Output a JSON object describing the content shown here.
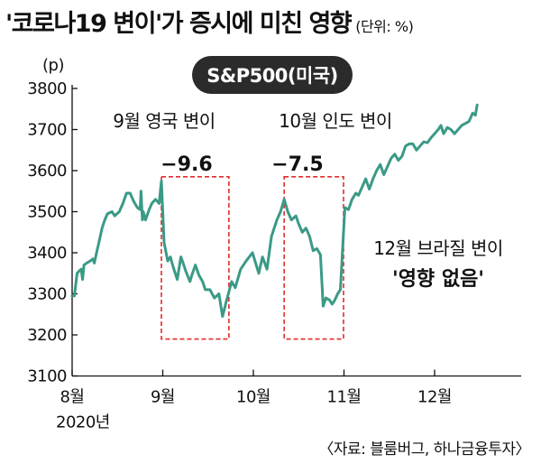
{
  "title": {
    "main": "'코로나19 변이'가 증시에 미친 영향",
    "unit": "(단위: %)"
  },
  "badge": "S&P500(미국)",
  "source": "〈자료: 블룸버그, 하나금융투자〉",
  "colors": {
    "line": "#3a9a86",
    "highlight_box": "#e02d2d",
    "badge_bg": "#2b2b2b"
  },
  "chart_data": {
    "type": "line",
    "title": "S&P500(미국)",
    "ylabel": "(p)",
    "xlabel": "",
    "ylim": [
      3100,
      3800
    ],
    "yticks": [
      3100,
      3200,
      3300,
      3400,
      3500,
      3600,
      3700,
      3800
    ],
    "xticks": [
      {
        "label": "8월",
        "x": 0
      },
      {
        "label": "9월",
        "x": 1
      },
      {
        "label": "10월",
        "x": 2
      },
      {
        "label": "11월",
        "x": 3
      },
      {
        "label": "12월",
        "x": 4
      }
    ],
    "year_label": "2020년",
    "grid": false,
    "series": [
      {
        "name": "",
        "points": [
          [
            0.0,
            3295
          ],
          [
            0.025,
            3295
          ],
          [
            0.055,
            3350
          ],
          [
            0.075,
            3355
          ],
          [
            0.1,
            3360
          ],
          [
            0.115,
            3335
          ],
          [
            0.13,
            3370
          ],
          [
            0.16,
            3375
          ],
          [
            0.2,
            3380
          ],
          [
            0.23,
            3385
          ],
          [
            0.245,
            3375
          ],
          [
            0.27,
            3400
          ],
          [
            0.3,
            3430
          ],
          [
            0.33,
            3460
          ],
          [
            0.36,
            3480
          ],
          [
            0.39,
            3495
          ],
          [
            0.44,
            3500
          ],
          [
            0.47,
            3490
          ],
          [
            0.52,
            3500
          ],
          [
            0.56,
            3520
          ],
          [
            0.6,
            3545
          ],
          [
            0.64,
            3545
          ],
          [
            0.68,
            3525
          ],
          [
            0.72,
            3510
          ],
          [
            0.75,
            3505
          ],
          [
            0.76,
            3550
          ],
          [
            0.775,
            3480
          ],
          [
            0.785,
            3500
          ],
          [
            0.81,
            3480
          ],
          [
            0.85,
            3505
          ],
          [
            0.88,
            3520
          ],
          [
            0.92,
            3530
          ],
          [
            0.96,
            3520
          ],
          [
            0.985,
            3575
          ],
          [
            1.0,
            3500
          ],
          [
            1.015,
            3425
          ],
          [
            1.055,
            3380
          ],
          [
            1.085,
            3390
          ],
          [
            1.115,
            3365
          ],
          [
            1.16,
            3335
          ],
          [
            1.2,
            3390
          ],
          [
            1.225,
            3375
          ],
          [
            1.255,
            3355
          ],
          [
            1.3,
            3330
          ],
          [
            1.32,
            3345
          ],
          [
            1.36,
            3370
          ],
          [
            1.4,
            3345
          ],
          [
            1.44,
            3330
          ],
          [
            1.47,
            3310
          ],
          [
            1.52,
            3310
          ],
          [
            1.57,
            3290
          ],
          [
            1.62,
            3300
          ],
          [
            1.66,
            3245
          ],
          [
            1.7,
            3280
          ],
          [
            1.76,
            3330
          ],
          [
            1.8,
            3315
          ],
          [
            1.86,
            3360
          ],
          [
            1.92,
            3380
          ],
          [
            1.99,
            3400
          ],
          [
            2.06,
            3350
          ],
          [
            2.1,
            3390
          ],
          [
            2.15,
            3360
          ],
          [
            2.2,
            3440
          ],
          [
            2.26,
            3480
          ],
          [
            2.3,
            3500
          ],
          [
            2.34,
            3530
          ],
          [
            2.38,
            3500
          ],
          [
            2.42,
            3480
          ],
          [
            2.47,
            3490
          ],
          [
            2.5,
            3470
          ],
          [
            2.54,
            3450
          ],
          [
            2.58,
            3460
          ],
          [
            2.62,
            3440
          ],
          [
            2.66,
            3405
          ],
          [
            2.7,
            3410
          ],
          [
            2.74,
            3395
          ],
          [
            2.77,
            3270
          ],
          [
            2.8,
            3290
          ],
          [
            2.84,
            3285
          ],
          [
            2.87,
            3275
          ],
          [
            2.9,
            3285
          ],
          [
            2.93,
            3300
          ],
          [
            2.96,
            3310
          ],
          [
            2.98,
            3390
          ],
          [
            3.01,
            3510
          ],
          [
            3.05,
            3505
          ],
          [
            3.09,
            3530
          ],
          [
            3.13,
            3545
          ],
          [
            3.16,
            3540
          ],
          [
            3.2,
            3560
          ],
          [
            3.24,
            3580
          ],
          [
            3.28,
            3555
          ],
          [
            3.32,
            3580
          ],
          [
            3.36,
            3600
          ],
          [
            3.4,
            3615
          ],
          [
            3.44,
            3590
          ],
          [
            3.48,
            3610
          ],
          [
            3.52,
            3630
          ],
          [
            3.56,
            3640
          ],
          [
            3.6,
            3625
          ],
          [
            3.64,
            3635
          ],
          [
            3.68,
            3660
          ],
          [
            3.72,
            3665
          ],
          [
            3.76,
            3665
          ],
          [
            3.8,
            3650
          ],
          [
            3.84,
            3660
          ],
          [
            3.88,
            3670
          ],
          [
            3.92,
            3668
          ],
          [
            3.96,
            3680
          ],
          [
            4.0,
            3690
          ],
          [
            4.04,
            3700
          ],
          [
            4.07,
            3710
          ],
          [
            4.1,
            3690
          ],
          [
            4.14,
            3705
          ],
          [
            4.18,
            3700
          ],
          [
            4.22,
            3690
          ],
          [
            4.26,
            3700
          ],
          [
            4.3,
            3710
          ],
          [
            4.34,
            3715
          ],
          [
            4.38,
            3720
          ],
          [
            4.42,
            3740
          ],
          [
            4.45,
            3735
          ],
          [
            4.47,
            3760
          ]
        ]
      }
    ],
    "annotations": [
      {
        "label": "9월 영국 변이",
        "value": "−9.6",
        "x_range": [
          0.985,
          1.73
        ],
        "y_range": [
          3190,
          3585
        ]
      },
      {
        "label": "10월 인도 변이",
        "value": "−7.5",
        "x_range": [
          2.34,
          2.995
        ],
        "y_range": [
          3190,
          3585
        ]
      },
      {
        "label": "12월 브라질 변이",
        "value": "'영향 없음'"
      }
    ]
  }
}
